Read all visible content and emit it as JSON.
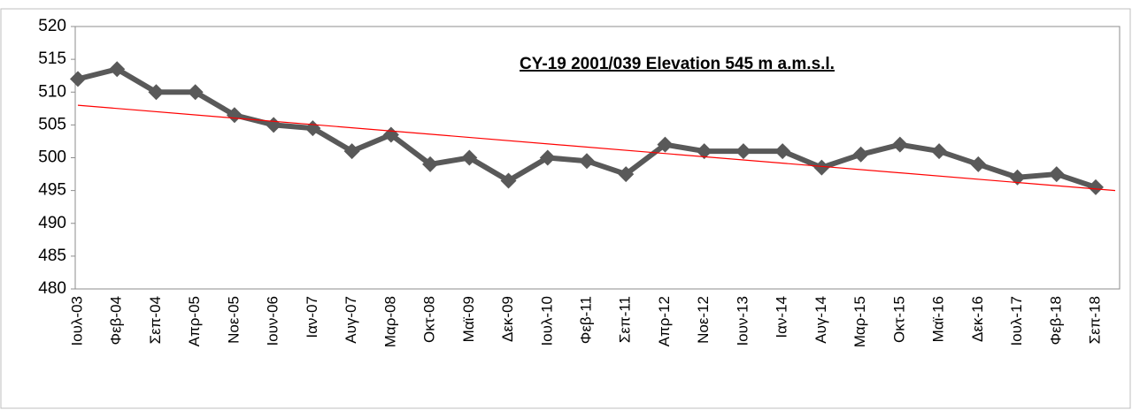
{
  "chart_data": {
    "type": "line",
    "title": "CY-19 2001/039  Elevation 545 m a.m.s.l.",
    "categories": [
      "Ιουλ-03",
      "Φεβ-04",
      "Σεπ-04",
      "Απρ-05",
      "Νοε-05",
      "Ιουν-06",
      "Ιαν-07",
      "Αυγ-07",
      "Μαρ-08",
      "Οκτ-08",
      "Μαϊ-09",
      "Δεκ-09",
      "Ιουλ-10",
      "Φεβ-11",
      "Σεπ-11",
      "Απρ-12",
      "Νοε-12",
      "Ιουν-13",
      "Ιαν-14",
      "Αυγ-14",
      "Μαρ-15",
      "Οκτ-15",
      "Μαϊ-16",
      "Δεκ-16",
      "Ιουλ-17",
      "Φεβ-18",
      "Σεπ-18"
    ],
    "series": [
      {
        "color": "#595959",
        "values": [
          512,
          513.5,
          510,
          510,
          506.5,
          505,
          504.5,
          501,
          503.5,
          499,
          500,
          496.5,
          500,
          499.5,
          497.5,
          502,
          501,
          501,
          501,
          498.5,
          500.5,
          502,
          501,
          499,
          497,
          497.5,
          495.5
        ]
      }
    ],
    "trend": {
      "color": "#ff0000",
      "values": [
        508,
        495
      ]
    },
    "ylim": [
      480,
      520
    ],
    "yticks": [
      480,
      485,
      490,
      495,
      500,
      505,
      510,
      515,
      520
    ]
  }
}
